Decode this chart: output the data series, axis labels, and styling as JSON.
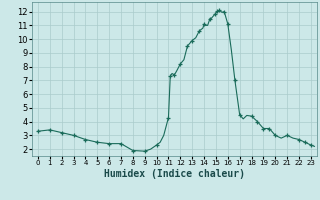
{
  "title": "",
  "xlabel": "Humidex (Indice chaleur)",
  "ylabel": "",
  "background_color": "#cce8e8",
  "grid_color": "#aacccc",
  "line_color": "#1a6b5a",
  "marker_color": "#1a6b5a",
  "xlim": [
    -0.5,
    23.5
  ],
  "ylim": [
    1.5,
    12.7
  ],
  "yticks": [
    2,
    3,
    4,
    5,
    6,
    7,
    8,
    9,
    10,
    11,
    12
  ],
  "xticks": [
    0,
    1,
    2,
    3,
    4,
    5,
    6,
    7,
    8,
    9,
    10,
    11,
    12,
    13,
    14,
    15,
    16,
    17,
    18,
    19,
    20,
    21,
    22,
    23
  ],
  "x": [
    0,
    1,
    2,
    3,
    4,
    5,
    6,
    7,
    8,
    9,
    9.5,
    10,
    10.3,
    10.6,
    11,
    11.15,
    11.3,
    11.5,
    11.7,
    12,
    12.3,
    12.6,
    13,
    13.3,
    13.6,
    13.9,
    14,
    14.1,
    14.3,
    14.5,
    14.6,
    14.8,
    14.9,
    15,
    15.1,
    15.2,
    15.3,
    15.5,
    15.7,
    16,
    16.3,
    16.6,
    17,
    17.3,
    17.6,
    18,
    18.5,
    19,
    19.5,
    20,
    20.5,
    21,
    21.5,
    22,
    22.5,
    23,
    23.3
  ],
  "y": [
    3.3,
    3.4,
    3.2,
    3.0,
    2.7,
    2.5,
    2.4,
    2.4,
    1.9,
    1.85,
    2.0,
    2.3,
    2.5,
    3.0,
    4.3,
    7.3,
    7.5,
    7.4,
    7.7,
    8.2,
    8.5,
    9.5,
    9.9,
    10.1,
    10.6,
    10.8,
    11.1,
    11.0,
    11.0,
    11.5,
    11.5,
    11.7,
    11.8,
    11.9,
    12.0,
    12.05,
    12.1,
    11.95,
    12.0,
    11.1,
    9.2,
    7.0,
    4.5,
    4.2,
    4.45,
    4.4,
    4.0,
    3.5,
    3.5,
    3.0,
    2.8,
    3.0,
    2.8,
    2.7,
    2.5,
    2.3,
    2.2
  ],
  "marker_x_approx": [
    0,
    1,
    2,
    3,
    4,
    5,
    6,
    7,
    8,
    9,
    10,
    11,
    11.15,
    11.5,
    12,
    12.6,
    13,
    13.6,
    14,
    14.5,
    14.9,
    15.1,
    15.3,
    15.7,
    16,
    16.6,
    17,
    18,
    18.5,
    19,
    19.5,
    20,
    21,
    22,
    22.5,
    23
  ],
  "marker_y_approx": [
    3.3,
    3.4,
    3.2,
    3.0,
    2.7,
    2.5,
    2.4,
    2.4,
    1.9,
    1.85,
    2.3,
    4.3,
    7.3,
    7.4,
    8.2,
    9.5,
    9.9,
    10.6,
    11.1,
    11.5,
    11.8,
    12.05,
    12.1,
    12.0,
    11.1,
    7.0,
    4.5,
    4.4,
    4.0,
    3.5,
    3.5,
    3.0,
    3.0,
    2.7,
    2.5,
    2.3
  ]
}
